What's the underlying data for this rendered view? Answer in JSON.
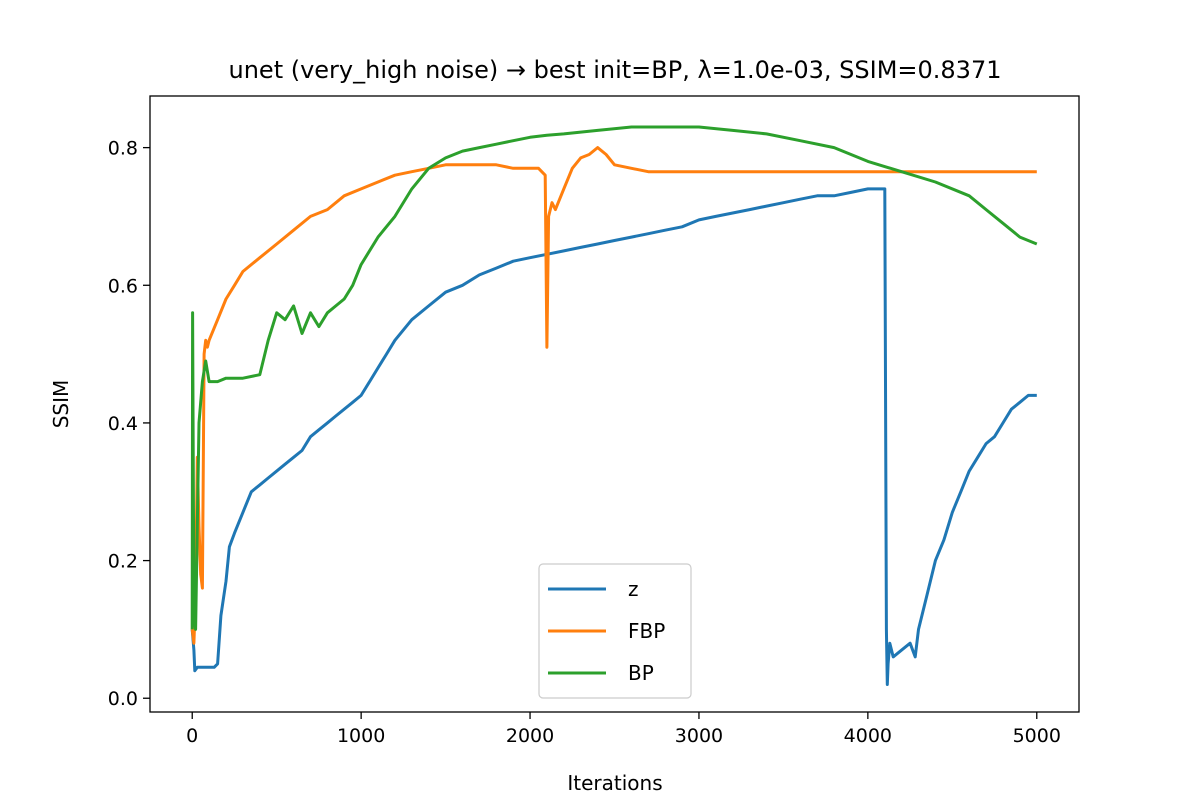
{
  "chart_data": {
    "type": "line",
    "title": "unet (very_high noise) → best init=BP, λ=1.0e-03, SSIM=0.8371",
    "xlabel": "Iterations",
    "ylabel": "SSIM",
    "xlim": [
      -250,
      5250
    ],
    "ylim": [
      -0.02,
      0.875
    ],
    "xticks": [
      0,
      1000,
      2000,
      3000,
      4000,
      5000
    ],
    "xtick_labels": [
      "0",
      "1000",
      "2000",
      "3000",
      "4000",
      "5000"
    ],
    "yticks": [
      0.0,
      0.2,
      0.4,
      0.6,
      0.8
    ],
    "ytick_labels": [
      "0.0",
      "0.2",
      "0.4",
      "0.6",
      "0.8"
    ],
    "grid": false,
    "legend_position": "lower center",
    "series": [
      {
        "name": "z",
        "color": "#1f77b4",
        "x": [
          0,
          10,
          15,
          30,
          60,
          100,
          130,
          150,
          170,
          200,
          220,
          250,
          300,
          350,
          400,
          450,
          500,
          550,
          600,
          650,
          700,
          750,
          800,
          850,
          900,
          950,
          1000,
          1050,
          1100,
          1150,
          1200,
          1300,
          1400,
          1500,
          1600,
          1700,
          1800,
          1900,
          2000,
          2100,
          2200,
          2300,
          2400,
          2500,
          2600,
          2700,
          2800,
          2900,
          3000,
          3100,
          3200,
          3300,
          3400,
          3500,
          3600,
          3700,
          3800,
          3900,
          4000,
          4100,
          4110,
          4115,
          4120,
          4130,
          4150,
          4200,
          4250,
          4280,
          4300,
          4350,
          4400,
          4450,
          4500,
          4550,
          4600,
          4650,
          4700,
          4750,
          4800,
          4850,
          4900,
          4950,
          5000
        ],
        "y": [
          0.1,
          0.07,
          0.04,
          0.045,
          0.045,
          0.045,
          0.045,
          0.05,
          0.12,
          0.17,
          0.22,
          0.24,
          0.27,
          0.3,
          0.31,
          0.32,
          0.33,
          0.34,
          0.35,
          0.36,
          0.38,
          0.39,
          0.4,
          0.41,
          0.42,
          0.43,
          0.44,
          0.46,
          0.48,
          0.5,
          0.52,
          0.55,
          0.57,
          0.59,
          0.6,
          0.615,
          0.625,
          0.635,
          0.64,
          0.645,
          0.65,
          0.655,
          0.66,
          0.665,
          0.67,
          0.675,
          0.68,
          0.685,
          0.695,
          0.7,
          0.705,
          0.71,
          0.715,
          0.72,
          0.725,
          0.73,
          0.73,
          0.735,
          0.74,
          0.74,
          0.1,
          0.02,
          0.05,
          0.08,
          0.06,
          0.07,
          0.08,
          0.06,
          0.1,
          0.15,
          0.2,
          0.23,
          0.27,
          0.3,
          0.33,
          0.35,
          0.37,
          0.38,
          0.4,
          0.42,
          0.43,
          0.44,
          0.44
        ]
      },
      {
        "name": "FBP",
        "color": "#ff7f0e",
        "x": [
          0,
          10,
          20,
          30,
          40,
          50,
          60,
          70,
          80,
          90,
          100,
          150,
          200,
          250,
          300,
          400,
          500,
          600,
          700,
          800,
          900,
          1000,
          1100,
          1200,
          1300,
          1400,
          1500,
          1600,
          1700,
          1800,
          1900,
          2000,
          2050,
          2090,
          2100,
          2110,
          2130,
          2150,
          2200,
          2250,
          2300,
          2350,
          2400,
          2450,
          2500,
          2600,
          2700,
          2800,
          2900,
          3000,
          3200,
          3400,
          3600,
          3800,
          4000,
          4200,
          4400,
          4600,
          4800,
          5000
        ],
        "y": [
          0.1,
          0.08,
          0.15,
          0.35,
          0.25,
          0.18,
          0.16,
          0.5,
          0.52,
          0.51,
          0.52,
          0.55,
          0.58,
          0.6,
          0.62,
          0.64,
          0.66,
          0.68,
          0.7,
          0.71,
          0.73,
          0.74,
          0.75,
          0.76,
          0.765,
          0.77,
          0.775,
          0.775,
          0.775,
          0.775,
          0.77,
          0.77,
          0.77,
          0.76,
          0.51,
          0.7,
          0.72,
          0.71,
          0.74,
          0.77,
          0.785,
          0.79,
          0.8,
          0.79,
          0.775,
          0.77,
          0.765,
          0.765,
          0.765,
          0.765,
          0.765,
          0.765,
          0.765,
          0.765,
          0.765,
          0.765,
          0.765,
          0.765,
          0.765,
          0.765
        ]
      },
      {
        "name": "BP",
        "color": "#2ca02c",
        "x": [
          0,
          2,
          10,
          20,
          40,
          60,
          80,
          100,
          150,
          200,
          300,
          400,
          450,
          500,
          550,
          600,
          650,
          700,
          750,
          800,
          850,
          900,
          950,
          1000,
          1100,
          1200,
          1300,
          1400,
          1500,
          1600,
          1700,
          1800,
          1900,
          2000,
          2100,
          2200,
          2400,
          2600,
          2800,
          3000,
          3200,
          3400,
          3600,
          3800,
          4000,
          4200,
          4400,
          4600,
          4700,
          4800,
          4900,
          5000
        ],
        "y": [
          0.1,
          0.56,
          0.12,
          0.1,
          0.4,
          0.46,
          0.49,
          0.46,
          0.46,
          0.465,
          0.465,
          0.47,
          0.52,
          0.56,
          0.55,
          0.57,
          0.53,
          0.56,
          0.54,
          0.56,
          0.57,
          0.58,
          0.6,
          0.63,
          0.67,
          0.7,
          0.74,
          0.77,
          0.785,
          0.795,
          0.8,
          0.805,
          0.81,
          0.815,
          0.818,
          0.82,
          0.825,
          0.83,
          0.83,
          0.83,
          0.825,
          0.82,
          0.81,
          0.8,
          0.78,
          0.765,
          0.75,
          0.73,
          0.71,
          0.69,
          0.67,
          0.66
        ]
      }
    ]
  }
}
